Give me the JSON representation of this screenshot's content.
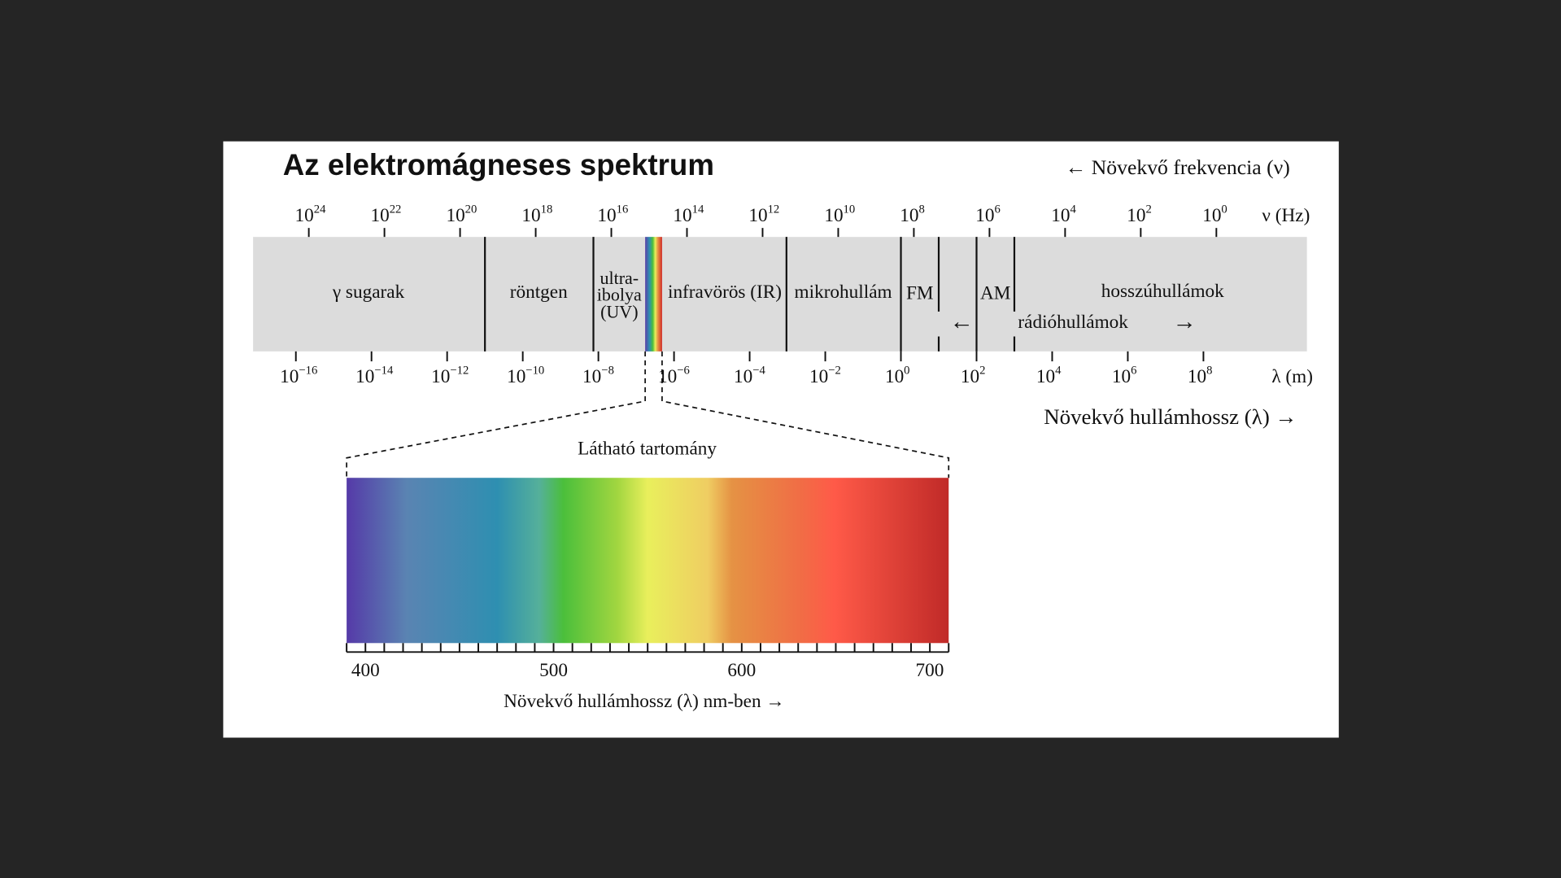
{
  "title": "Az elektromágneses spektrum",
  "frequency_axis": {
    "direction": "← Növekvő frekvencia (ν)",
    "unit": "ν (Hz)",
    "ticks": [
      {
        "base": "10",
        "exp": "24"
      },
      {
        "base": "10",
        "exp": "22"
      },
      {
        "base": "10",
        "exp": "20"
      },
      {
        "base": "10",
        "exp": "18"
      },
      {
        "base": "10",
        "exp": "16"
      },
      {
        "base": "10",
        "exp": "14"
      },
      {
        "base": "10",
        "exp": "12"
      },
      {
        "base": "10",
        "exp": "10"
      },
      {
        "base": "10",
        "exp": "8"
      },
      {
        "base": "10",
        "exp": "6"
      },
      {
        "base": "10",
        "exp": "4"
      },
      {
        "base": "10",
        "exp": "2"
      },
      {
        "base": "10",
        "exp": "0"
      }
    ]
  },
  "bands": {
    "gamma": "γ sugarak",
    "xray": "röntgen",
    "uv": [
      "ultra-",
      "ibolya",
      "(UV)"
    ],
    "ir": "infravörös (IR)",
    "microwave": "mikrohullám",
    "fm": "FM",
    "am": "AM",
    "longwave": "hosszúhullámok",
    "radio": {
      "left_arrow": "←",
      "label": "rádióhullámok",
      "right_arrow": "→"
    }
  },
  "wavelength_axis": {
    "unit": "λ (m)",
    "direction": "Növekvő hullámhossz (λ) →",
    "ticks": [
      {
        "base": "10",
        "exp": "−16"
      },
      {
        "base": "10",
        "exp": "−14"
      },
      {
        "base": "10",
        "exp": "−12"
      },
      {
        "base": "10",
        "exp": "−10"
      },
      {
        "base": "10",
        "exp": "−8"
      },
      {
        "base": "10",
        "exp": "−6"
      },
      {
        "base": "10",
        "exp": "−4"
      },
      {
        "base": "10",
        "exp": "−2"
      },
      {
        "base": "10",
        "exp": "0"
      },
      {
        "base": "10",
        "exp": "2"
      },
      {
        "base": "10",
        "exp": "4"
      },
      {
        "base": "10",
        "exp": "6"
      },
      {
        "base": "10",
        "exp": "8"
      }
    ]
  },
  "visible": {
    "title": "Látható tartomány",
    "ticks": [
      "400",
      "500",
      "600",
      "700"
    ],
    "axis_label": "Növekvő hullámhossz (λ) nm-ben →"
  }
}
